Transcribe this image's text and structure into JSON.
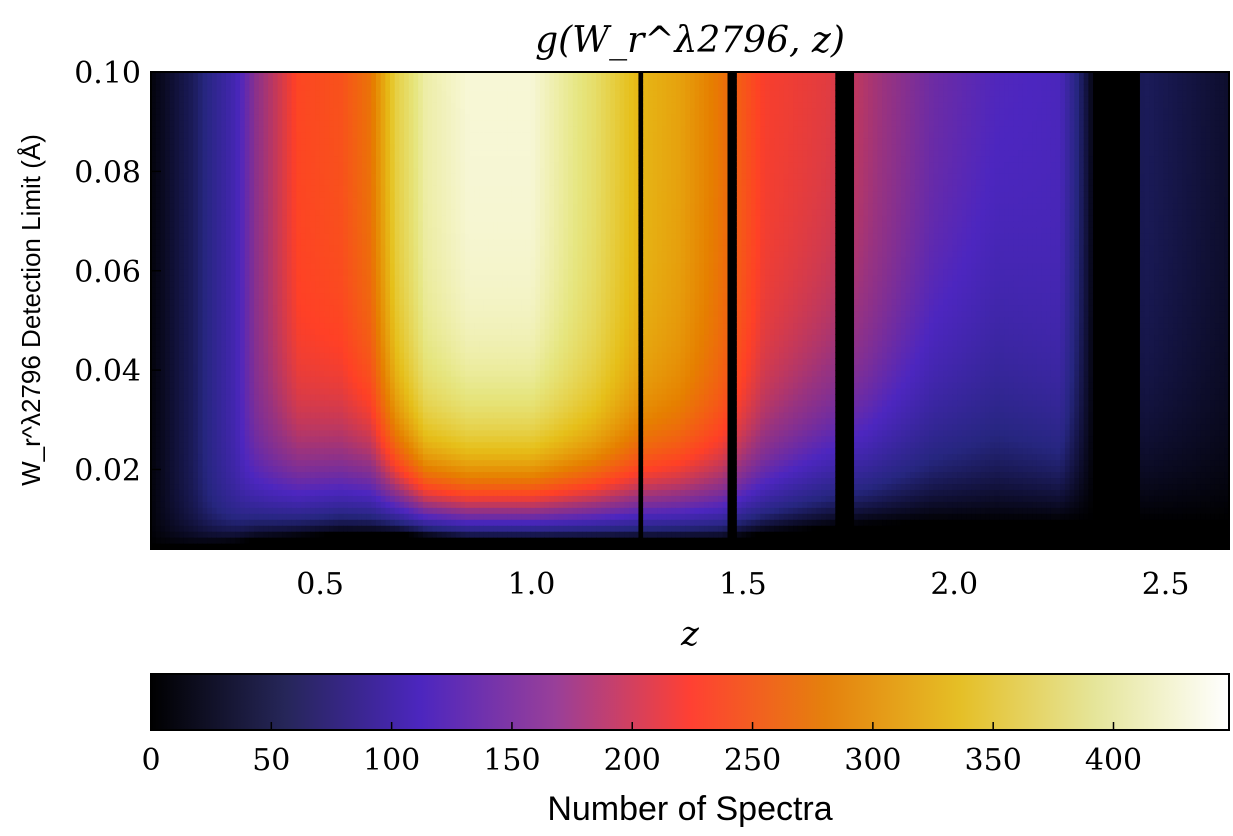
{
  "chart_data": {
    "type": "heatmap",
    "title": "g(W_r^λ2796, z)",
    "xlabel": "z",
    "ylabel": "W_r^λ2796 Detection Limit (Å)",
    "xlim": [
      0.1,
      2.65
    ],
    "ylim": [
      0.004,
      0.1
    ],
    "x_ticks": [
      "0.5",
      "1.0",
      "1.5",
      "2.0",
      "2.5"
    ],
    "y_ticks": [
      "0.02",
      "0.04",
      "0.06",
      "0.08",
      "0.10"
    ],
    "x_tick_values": [
      0.5,
      1.0,
      1.5,
      2.0,
      2.5
    ],
    "y_tick_values": [
      0.02,
      0.04,
      0.06,
      0.08,
      0.1
    ],
    "colormap": "CMRmap",
    "colorbar": {
      "label": "Number of Spectra",
      "range": [
        0,
        448
      ],
      "ticks": [
        "0",
        "50",
        "100",
        "150",
        "200",
        "250",
        "300",
        "350",
        "400"
      ],
      "tick_values": [
        0,
        50,
        100,
        150,
        200,
        250,
        300,
        350,
        400
      ]
    },
    "z_grid": [
      0.1,
      0.2,
      0.3,
      0.35,
      0.45,
      0.55,
      0.62,
      0.68,
      0.75,
      0.85,
      1.0,
      1.15,
      1.25,
      1.35,
      1.45,
      1.55,
      1.7,
      1.8,
      1.95,
      2.1,
      2.25,
      2.33,
      2.45,
      2.55,
      2.65
    ],
    "plateau_counts": [
      5,
      40,
      100,
      160,
      230,
      240,
      270,
      360,
      410,
      430,
      430,
      380,
      330,
      310,
      270,
      220,
      210,
      180,
      140,
      120,
      110,
      5,
      40,
      30,
      20
    ],
    "edge_widths_A": [
      0.003,
      0.004,
      0.006,
      0.01,
      0.013,
      0.014,
      0.015,
      0.014,
      0.012,
      0.012,
      0.012,
      0.012,
      0.012,
      0.012,
      0.012,
      0.014,
      0.02,
      0.02,
      0.025,
      0.028,
      0.02,
      0.02,
      0.02,
      0.02,
      0.02
    ],
    "onset_limits_A": [
      0.008,
      0.008,
      0.009,
      0.01,
      0.011,
      0.012,
      0.012,
      0.012,
      0.011,
      0.01,
      0.01,
      0.01,
      0.01,
      0.01,
      0.01,
      0.012,
      0.014,
      0.015,
      0.016,
      0.016,
      0.016,
      0.016,
      0.016,
      0.016,
      0.016
    ],
    "gaps_z": [
      [
        1.255,
        1.265
      ],
      [
        1.465,
        1.485
      ],
      [
        1.72,
        1.76
      ],
      [
        2.33,
        2.44
      ]
    ]
  }
}
